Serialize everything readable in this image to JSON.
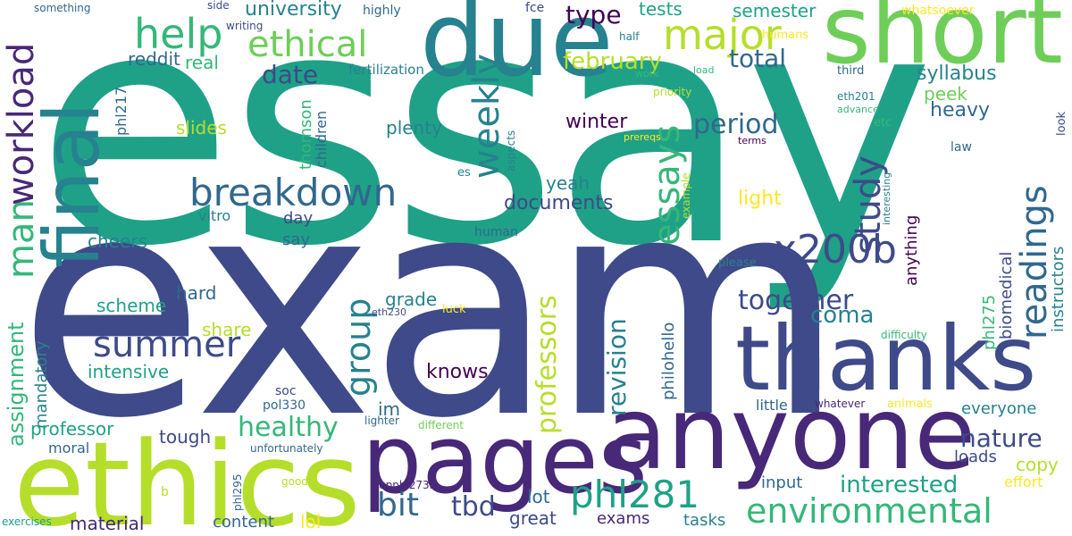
{
  "palette": {
    "dark_navy": "#3e4a89",
    "purple": "#482878",
    "deep_purple": "#440154",
    "teal": "#26828e",
    "blue_teal": "#31688e",
    "green_teal": "#1fa187",
    "green": "#35b779",
    "light_green": "#6ece58",
    "lime": "#b5de2b",
    "yellow": "#fde725"
  },
  "words": {
    "essay": "essay",
    "exam": "exam",
    "short": "short",
    "due": "due",
    "final": "final",
    "ethics": "ethics",
    "pages": "pages",
    "anyone": "anyone",
    "thanks": "thanks",
    "ethical": "ethical",
    "help": "help",
    "major": "major",
    "breakdown": "breakdown",
    "workload": "workload",
    "man": "man",
    "summer": "summer",
    "weekly": "weekly",
    "essays": "essays",
    "study": "study",
    "readings": "readings",
    "x200b": "x200b",
    "together": "together",
    "coma": "coma",
    "group": "group",
    "environmental": "environmental",
    "phl281": "phl281",
    "bit": "bit",
    "tbd": "tbd",
    "professors": "professors",
    "revision": "revision",
    "healthy": "healthy",
    "period": "period",
    "february": "february",
    "type": "type",
    "tests": "tests",
    "semester": "semester",
    "total": "total",
    "syllabus": "syllabus",
    "peek": "peek",
    "heavy": "heavy",
    "university": "university",
    "date": "date",
    "reddit": "reddit",
    "real": "real",
    "fertilization": "fertilization",
    "slides": "slides",
    "plenty": "plenty",
    "winter": "winter",
    "yeah": "yeah",
    "documents": "documents",
    "light": "light",
    "cheers": "cheers",
    "day": "day",
    "say": "say",
    "vitro": "vitro",
    "hard": "hard",
    "scheme": "scheme",
    "share": "share",
    "intensive": "intensive",
    "assignment": "assignment",
    "mandatory": "mandatory",
    "professor": "professor",
    "moral": "moral",
    "tough": "tough",
    "material": "material",
    "content": "content",
    "lol": "lol",
    "great": "great",
    "exams": "exams",
    "tasks": "tasks",
    "lot": "lot",
    "input": "input",
    "interested": "interested",
    "copy": "copy",
    "effort": "effort",
    "loads": "loads",
    "nature": "nature",
    "everyone": "everyone",
    "little": "little",
    "whatever": "whatever",
    "animals": "animals",
    "knows": "knows",
    "im": "im",
    "grade": "grade",
    "soc": "soc",
    "pol330": "pol330",
    "eth230": "eth230",
    "luck": "luck",
    "human": "human",
    "please": "please",
    "something": "something",
    "side": "side",
    "writing": "writing",
    "highly": "highly",
    "fce": "fce",
    "whatsoever": "whatsoever",
    "half": "half",
    "humans": "humans",
    "work": "work",
    "load": "load",
    "third": "third",
    "priority": "priority",
    "eth201": "eth201",
    "advance": "advance",
    "etc": "etc",
    "terms": "terms",
    "law": "law",
    "look": "look",
    "prereqs": "prereqs",
    "es": "es",
    "aspects": "aspects",
    "interesting": "interesting",
    "example": "example",
    "difficulty": "difficulty",
    "lighter": "lighter",
    "different": "different",
    "unfortunately": "unfortunately",
    "good": "good",
    "b": "b",
    "exercises": "exercises",
    "phl295": "phl295",
    "upphl273is": "upphl273is",
    "phl217": "phl217",
    "thomson": "thomson",
    "children": "children",
    "anything": "anything",
    "phl275": "phl275",
    "biomedical": "biomedical",
    "instructors": "instructors",
    "philohello": "philohello"
  }
}
